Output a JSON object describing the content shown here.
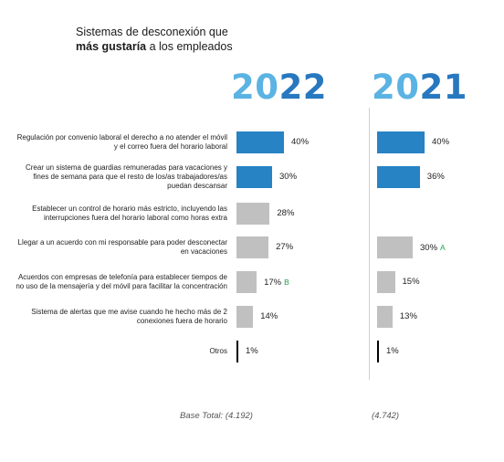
{
  "title": {
    "line1": "Sistemas de desconexión que",
    "line2_bold": "más gustaría",
    "line2_rest": " a los empleados"
  },
  "chart_data": {
    "type": "bar",
    "orientation": "horizontal",
    "colors": {
      "highlight": "#2783c4",
      "default": "#c0c0c0",
      "other": "#000000",
      "sig_green": "#20a050",
      "year_light": "#5bb3e3",
      "year_dark": "#2878c0"
    },
    "categories": [
      "Regulación por convenio laboral el derecho a no atender el móvil y el correo fuera del horario laboral",
      "Crear un sistema de guardias remuneradas para vacaciones y fines de semana para que el resto de los/as trabajadores/as puedan descansar",
      "Establecer un control de horario más estricto, incluyendo las interrupciones fuera del horario laboral como horas extra",
      "Llegar a un acuerdo con mi responsable para poder desconectar en vacaciones",
      "Acuerdos con empresas de telefonía para establecer tiempos de no uso de la mensajería y del móvil para facilitar la concentración",
      "Sistema de alertas que me avise cuando he hecho más de 2 conexiones fuera de horario",
      "Otros"
    ],
    "series": [
      {
        "name": "2022",
        "base": "Base Total: (4.192)",
        "values": [
          40,
          30,
          28,
          27,
          17,
          14,
          1
        ],
        "labels": [
          "40%",
          "30%",
          "28%",
          "27%",
          "17%",
          "14%",
          "1%"
        ],
        "markers": [
          "",
          "",
          "",
          "",
          "B",
          "",
          ""
        ],
        "highlight": [
          true,
          true,
          false,
          false,
          false,
          false,
          false
        ]
      },
      {
        "name": "2021",
        "base": "(4.742)",
        "values": [
          40,
          36,
          null,
          30,
          15,
          13,
          1
        ],
        "labels": [
          "40%",
          "36%",
          "",
          "30%",
          "15%",
          "13%",
          "1%"
        ],
        "markers": [
          "",
          "",
          "",
          "A",
          "",
          "",
          ""
        ],
        "highlight": [
          true,
          true,
          false,
          false,
          false,
          false,
          false
        ]
      }
    ]
  }
}
